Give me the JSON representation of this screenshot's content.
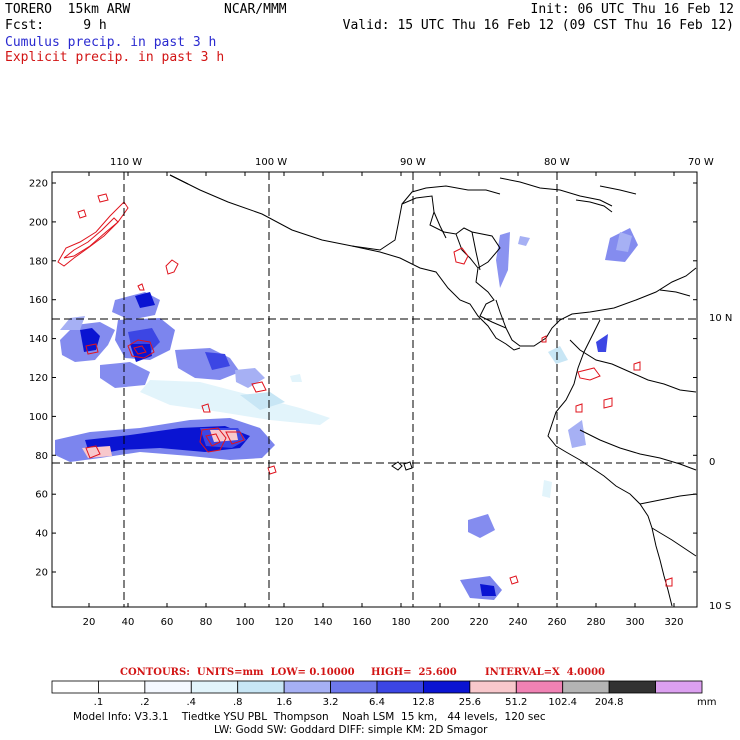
{
  "header": {
    "model": "TORERO  15km ARW",
    "org": "NCAR/MMM",
    "init": "Init: 06 UTC Thu 16 Feb 12",
    "fcst": "Fcst:     9 h",
    "valid": "Valid: 15 UTC Thu 16 Feb 12 (09 CST Thu 16 Feb 12)",
    "legend_cumulus": "Cumulus precip. in past 3 h",
    "legend_explicit": "Explicit precip. in past 3 h"
  },
  "colors": {
    "cumulus_text": "#2a2ad0",
    "explicit_text": "#d21414",
    "contour": "#e0141e"
  },
  "map": {
    "lon_labels": [
      "110 W",
      "100 W",
      "90 W",
      "80 W",
      "70 W"
    ],
    "lat_labels": [
      "10 N",
      "0",
      "10 S"
    ],
    "y_ticks": [
      "220",
      "200",
      "180",
      "160",
      "140",
      "120",
      "100",
      "80",
      "60",
      "40",
      "20"
    ],
    "x_ticks": [
      "20",
      "40",
      "60",
      "80",
      "100",
      "120",
      "140",
      "160",
      "180",
      "200",
      "220",
      "240",
      "260",
      "280",
      "300",
      "320"
    ]
  },
  "contour_info": {
    "contours": "CONTOURS:  UNITS=mm  LOW= 0.10000",
    "high": "HIGH=  25.600",
    "interval": "INTERVAL=X  4.0000"
  },
  "colorbar": {
    "labels": [
      ".1",
      ".2",
      ".4",
      ".8",
      "1.6",
      "3.2",
      "6.4",
      "12.8",
      "25.6",
      "51.2",
      "102.4",
      "204.8"
    ],
    "unit": "mm",
    "colors": [
      "#ffffff",
      "#ffffff",
      "#f4f8ff",
      "#e2f4fb",
      "#c8e6f5",
      "#a6b0f4",
      "#6e78ec",
      "#3c46e4",
      "#0a14d2",
      "#f8c8cc",
      "#f082b4",
      "#b4b4b4",
      "#323232",
      "#dca0f0"
    ]
  },
  "footer": {
    "line1": "Model Info: V3.3.1    Tiedtke YSU PBL  Thompson    Noah LSM  15 km,   44 levels,  120 sec",
    "line2": "LW: Godd SW: Goddard DIFF: simple KM: 2D Smagor"
  }
}
